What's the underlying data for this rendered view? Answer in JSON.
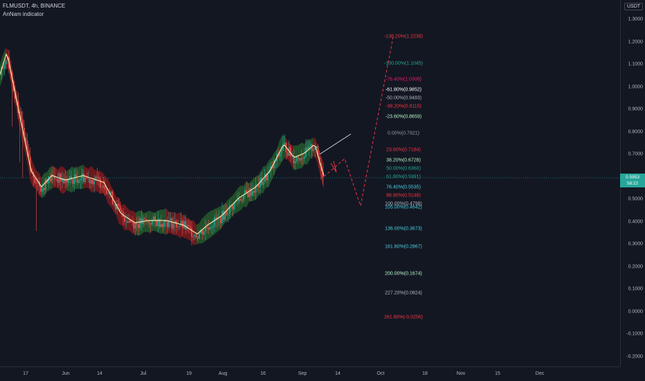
{
  "header": {
    "symbol_line": "FLMUSDT, 4h, BINANCE",
    "indicator": "AnNam indicator"
  },
  "currency": "USDT",
  "current_price": {
    "price": "0.5953",
    "countdown": "58:22"
  },
  "price_axis": [
    "1.3000",
    "1.2000",
    "1.1000",
    "1.0000",
    "0.9000",
    "0.8000",
    "0.7000",
    "0.6000",
    "0.5000",
    "0.4000",
    "0.3000",
    "0.2000",
    "0.1000",
    "0.0000",
    "-0.1000",
    "-0.2000"
  ],
  "time_axis": [
    "17",
    "Jun",
    "14",
    "Jul",
    "19",
    "Aug",
    "16",
    "Sep",
    "14",
    "Oct",
    "18",
    "Nov",
    "15",
    "Dec"
  ],
  "fib_levels": [
    {
      "label": "-138.20%(1.2238)",
      "color": "#f23645",
      "price": 1.2238
    },
    {
      "label": "-100.00%(1.1045)",
      "color": "#22ab94",
      "price": 1.1045
    },
    {
      "label": "-76.40%(1.0308)",
      "color": "#e91e63",
      "price": 1.0308
    },
    {
      "label": "-61.80%(0.9852)",
      "color": "#ffffff",
      "price": 0.9852
    },
    {
      "label": "-50.00%(0.9483)",
      "color": "#b2b5be",
      "price": 0.9483
    },
    {
      "label": "-38.20%(0.9115)",
      "color": "#f23645",
      "price": 0.9115
    },
    {
      "label": "-23.60%(0.8659)",
      "color": "#b9f6ca",
      "price": 0.8659
    },
    {
      "label": "0.00%(0.7921)",
      "color": "#9598a1",
      "price": 0.7921
    },
    {
      "label": "23.60%(0.7184)",
      "color": "#f23645",
      "price": 0.7184
    },
    {
      "label": "38.20%(0.6728)",
      "color": "#b9f6ca",
      "price": 0.6728
    },
    {
      "label": "50.00%(0.6360)",
      "color": "#22ab94",
      "price": 0.636
    },
    {
      "label": "61.80%(0.5991)",
      "color": "#22ab94",
      "price": 0.5991
    },
    {
      "label": "76.40%(0.5535)",
      "color": "#4dd0e1",
      "price": 0.5535
    },
    {
      "label": "88.80%(0.5148)",
      "color": "#f23645",
      "price": 0.5148
    },
    {
      "label": "100.00%(0.4798)",
      "color": "#b2b5be",
      "price": 0.4798
    },
    {
      "label": "105.00%(0.4642)",
      "color": "#4dd0e1",
      "price": 0.4642
    },
    {
      "label": "136.00%(0.3673)",
      "color": "#4dd0e1",
      "price": 0.3673
    },
    {
      "label": "161.80%(0.2867)",
      "color": "#4dd0e1",
      "price": 0.2867
    },
    {
      "label": "200.00%(0.1674)",
      "color": "#b9f6ca",
      "price": 0.1674
    },
    {
      "label": "227.20%(0.0824)",
      "color": "#b2b5be",
      "price": 0.0824
    },
    {
      "label": "261.80%(-0.0256)",
      "color": "#f23645",
      "price": -0.0256
    }
  ],
  "chart_data": {
    "type": "line",
    "x": [
      "17",
      "Jun",
      "14",
      "Jul",
      "19",
      "Aug",
      "16",
      "Sep",
      "14"
    ],
    "series": [
      {
        "values": [
          1.0,
          0.58,
          0.52,
          0.36,
          0.33,
          0.4,
          0.6,
          0.76,
          0.6
        ]
      }
    ],
    "projection": [
      0.6,
      0.62,
      0.47,
      1.22
    ],
    "ylim": [
      -0.2,
      1.3
    ]
  },
  "colors": {
    "background": "#131722",
    "up": "#26a69a",
    "down": "#ef5350",
    "ma": "#f7e7a6",
    "cloud_up": "#2e7d32",
    "cloud_down": "#b71c1c"
  }
}
